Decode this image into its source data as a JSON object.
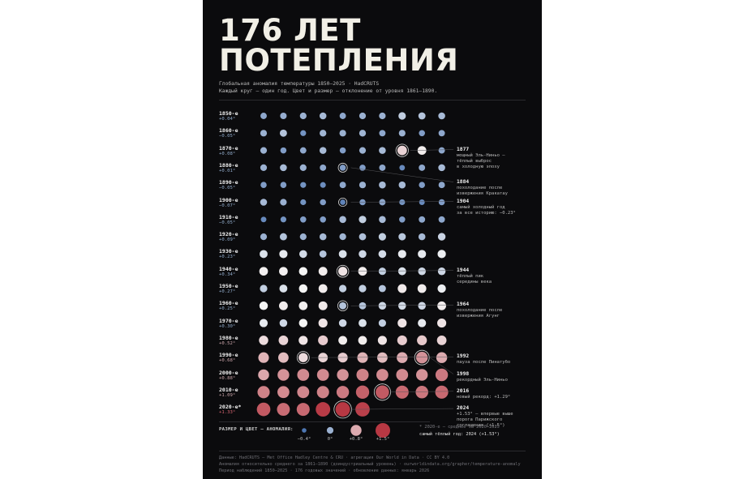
{
  "poster": {
    "title_line1": "176 ЛЕТ",
    "title_line2": "ПОТЕПЛЕНИЯ",
    "subtitle_line1": "Глобальная аномалия температуры 1850–2025 · HadCRUTS",
    "subtitle_line2": "Каждый круг — один год. Цвет и размер — отклонение от уровня 1861–1890.",
    "decades": [
      {
        "label": "1850-е",
        "value": "+0.04°"
      },
      {
        "label": "1860-е",
        "value": "−0.05°"
      },
      {
        "label": "1870-е",
        "value": "+0.08°"
      },
      {
        "label": "1880-е",
        "value": "+0.01°"
      },
      {
        "label": "1890-е",
        "value": "−0.05°"
      },
      {
        "label": "1900-е",
        "value": "−0.07°"
      },
      {
        "label": "1910-е",
        "value": "−0.05°"
      },
      {
        "label": "1920-е",
        "value": "+0.09°"
      },
      {
        "label": "1930-е",
        "value": "+0.23°"
      },
      {
        "label": "1940-е",
        "value": "+0.34°"
      },
      {
        "label": "1950-е",
        "value": "+0.27°"
      },
      {
        "label": "1960-е",
        "value": "+0.25°"
      },
      {
        "label": "1970-е",
        "value": "+0.30°"
      },
      {
        "label": "1980-е",
        "value": "+0.52°"
      },
      {
        "label": "1990-е",
        "value": "+0.68°"
      },
      {
        "label": "2000-е",
        "value": "+0.88°"
      },
      {
        "label": "2010-е",
        "value": "+1.09°"
      },
      {
        "label": "2020-е*",
        "value": "+1.33°"
      }
    ],
    "annotations": [
      {
        "year": "1877",
        "text": "мощный Эль-Ниньо —\nтёплый выброс\nв холодную эпоху"
      },
      {
        "year": "1884",
        "text": "похолодание после\nизвержения Кракатау"
      },
      {
        "year": "1904",
        "text": "самый холодный год\nза все историю: −0.23°"
      },
      {
        "year": "1944",
        "text": "тёплый пик\nсередины века"
      },
      {
        "year": "1964",
        "text": "похолодание после\nизвержения Агунг"
      },
      {
        "year": "1992",
        "text": "пауза после Пинатубо"
      },
      {
        "year": "1998",
        "text": "рекордный Эль-Ниньо"
      },
      {
        "year": "2016",
        "text": "новый рекорд: +1.29°"
      },
      {
        "year": "2024",
        "text": "+1.53° — впервые выше\nпорога Парижского\nсоглашения (+1.5°)"
      }
    ],
    "legend": {
      "title": "РАЗМЕР И ЦВЕТ — АНОМАЛИЯ:",
      "items": [
        "−0.4°",
        "0°",
        "+0.8°",
        "+1.5°"
      ]
    },
    "note1": "* 2020-е — среднее за 2020–2025",
    "note2": "самый тёплый год: 2024 (+1.53°)",
    "footer": [
      "Данные: HadCRUTS — Met Office Hadley Centre & CRU · агрегация Our World in Data · CC BY 4.0",
      "Аномалия относительно среднего за 1861–1890 (доиндустриальный уровень) · ourworldindata.org/grapher/temperature-anomaly",
      "Период наблюдений 1850–2025 · 176 годовых значений · обновление данных: январь 2026"
    ],
    "colors": {
      "cold": "#4e77b3",
      "neutral": "#f4f4f4",
      "warm": "#b73843",
      "background": "#0b0b0d"
    }
  },
  "chart_data": {
    "type": "scatter",
    "title": "176 ЛЕТ ПОТЕПЛЕНИЯ",
    "xlabel": "",
    "ylabel": "",
    "years_start": 1850,
    "years_end": 2025,
    "highlighted_years": [
      1877,
      1884,
      1904,
      1944,
      1964,
      1992,
      1998,
      2016,
      2024
    ],
    "anomaly_range": [
      -0.4,
      1.5
    ],
    "values": [
      [
        -0.05,
        -0.02,
        0.0,
        0.05,
        -0.05,
        0.0,
        0.0,
        0.15,
        0.1,
        0.05
      ],
      [
        0.0,
        0.1,
        -0.15,
        0.02,
        0.0,
        0.02,
        -0.05,
        0.0,
        -0.1,
        -0.05
      ],
      [
        0.0,
        -0.1,
        -0.05,
        0.05,
        -0.1,
        0.0,
        0.05,
        0.55,
        0.4,
        -0.05
      ],
      [
        0.0,
        0.05,
        0.0,
        -0.05,
        -0.1,
        -0.1,
        -0.05,
        -0.2,
        -0.05,
        0.05
      ],
      [
        -0.1,
        -0.1,
        -0.15,
        -0.18,
        -0.05,
        0.0,
        0.05,
        0.05,
        -0.1,
        -0.05
      ],
      [
        0.05,
        0.0,
        -0.15,
        -0.1,
        -0.23,
        -0.1,
        -0.05,
        -0.15,
        -0.2,
        -0.1
      ],
      [
        -0.2,
        -0.15,
        -0.1,
        -0.1,
        0.05,
        0.15,
        0.05,
        -0.1,
        -0.05,
        -0.05
      ],
      [
        0.0,
        0.1,
        0.0,
        0.05,
        0.02,
        0.08,
        0.15,
        0.12,
        0.05,
        0.18
      ],
      [
        0.25,
        0.3,
        0.22,
        0.1,
        0.25,
        0.2,
        0.22,
        0.3,
        0.3,
        0.32
      ],
      [
        0.38,
        0.38,
        0.35,
        0.4,
        0.45,
        0.4,
        0.15,
        0.25,
        0.2,
        0.2
      ],
      [
        0.15,
        0.25,
        0.35,
        0.4,
        0.15,
        0.15,
        0.1,
        0.42,
        0.4,
        0.32
      ],
      [
        0.35,
        0.4,
        0.38,
        0.42,
        0.1,
        0.1,
        0.2,
        0.22,
        0.2,
        0.4
      ],
      [
        0.3,
        0.2,
        0.35,
        0.45,
        0.2,
        0.25,
        0.15,
        0.45,
        0.3,
        0.45
      ],
      [
        0.5,
        0.55,
        0.45,
        0.6,
        0.4,
        0.4,
        0.45,
        0.6,
        0.62,
        0.55
      ],
      [
        0.75,
        0.7,
        0.5,
        0.55,
        0.6,
        0.75,
        0.7,
        0.8,
        0.95,
        0.8
      ],
      [
        0.82,
        0.95,
        1.0,
        1.0,
        0.95,
        1.05,
        1.0,
        1.0,
        0.95,
        1.1
      ],
      [
        1.05,
        1.0,
        1.02,
        1.05,
        1.1,
        1.25,
        1.29,
        1.2,
        1.12,
        1.2
      ],
      [
        1.3,
        1.18,
        1.2,
        1.48,
        1.53,
        1.45
      ]
    ]
  }
}
